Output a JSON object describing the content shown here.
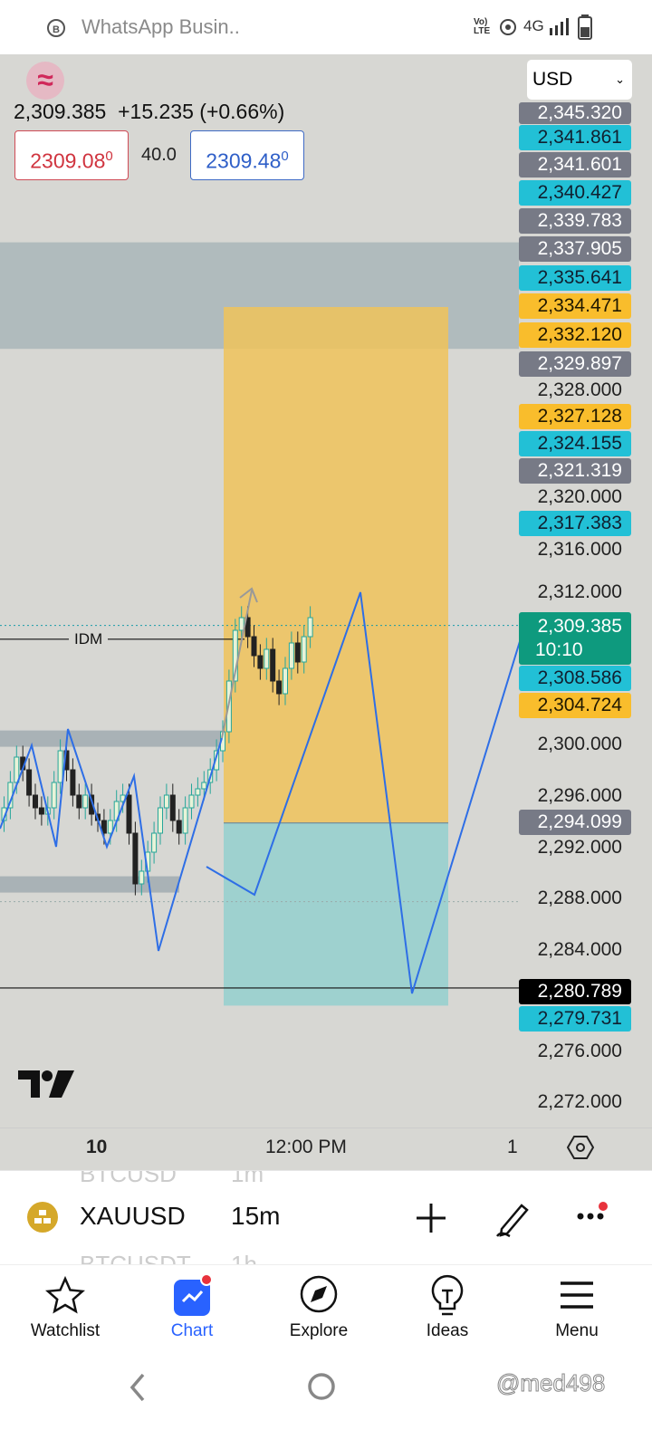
{
  "status_bar": {
    "app": "WhatsApp Busin..",
    "network": "4G",
    "volte": "Vo) LTE"
  },
  "header": {
    "price": "2,309.385",
    "change": "+15.235 (+0.66%)",
    "bid": "2309.08",
    "bid_sup": "0",
    "spread": "40.0",
    "ask": "2309.48",
    "ask_sup": "0",
    "currency": "USD"
  },
  "price_labels": [
    {
      "v": "2,345.320",
      "k": "grey"
    },
    {
      "v": "2,341.861",
      "k": "cyan"
    },
    {
      "v": "2,341.601",
      "k": "grey"
    },
    {
      "v": "2,340.427",
      "k": "cyan"
    },
    {
      "v": "2,339.783",
      "k": "grey"
    },
    {
      "v": "2,337.905",
      "k": "grey"
    },
    {
      "v": "2,335.641",
      "k": "cyan"
    },
    {
      "v": "2,334.471",
      "k": "orange"
    },
    {
      "v": "2,332.120",
      "k": "orange"
    },
    {
      "v": "2,329.897",
      "k": "grey"
    },
    {
      "v": "2,327.128",
      "k": "orange"
    },
    {
      "v": "2,324.155",
      "k": "cyan"
    },
    {
      "v": "2,321.319",
      "k": "grey"
    },
    {
      "v": "2,317.383",
      "k": "cyan"
    },
    {
      "v": "2,309.385",
      "k": "green",
      "sub": "10:10"
    },
    {
      "v": "2,308.586",
      "k": "cyan"
    },
    {
      "v": "2,304.724",
      "k": "orange"
    },
    {
      "v": "2,294.099",
      "k": "grey"
    },
    {
      "v": "2,280.789",
      "k": "black"
    },
    {
      "v": "2,279.731",
      "k": "cyan"
    }
  ],
  "axis_ticks": [
    "2,328.000",
    "2,320.000",
    "2,316.000",
    "2,312.000",
    "2,300.000",
    "2,296.000",
    "2,292.000",
    "2,288.000",
    "2,284.000",
    "2,276.000",
    "2,272.000"
  ],
  "time_axis": {
    "labels": [
      "10",
      "12:00 PM"
    ],
    "right": "1"
  },
  "drawing_labels": {
    "idm": "IDM"
  },
  "chart_data": {
    "type": "candlestick",
    "symbol": "XAUUSD",
    "interval": "15m",
    "ylim": [
      2270,
      2350
    ],
    "closes": [
      2295,
      2297,
      2299,
      2298,
      2296,
      2295,
      2294.5,
      2295,
      2297,
      2299.5,
      2298,
      2296,
      2295,
      2296,
      2294.5,
      2294,
      2293,
      2294,
      2295.5,
      2296,
      2293,
      2289,
      2290,
      2291.5,
      2293,
      2295,
      2296,
      2294,
      2293,
      2295,
      2296,
      2296.5,
      2297,
      2298,
      2299.5,
      2301,
      2305,
      2309,
      2310,
      2308.5,
      2307,
      2306,
      2307.5,
      2305,
      2304,
      2306,
      2308,
      2306.5,
      2308.5,
      2310
    ],
    "colors": {
      "up": "#26a69a",
      "down": "#222222",
      "long_box": "#f0c35a",
      "stop_box": "#9ed1cf",
      "zone": "#a9b6b9",
      "line": "#2e6ee6"
    }
  },
  "symbol_bar": {
    "prev_symbol": "BTCUSD",
    "prev_interval": "1m",
    "symbol": "XAUUSD",
    "interval": "15m",
    "next_symbol": "BTCUSDT",
    "next_interval": "1h"
  },
  "nav": [
    {
      "label": "Watchlist",
      "icon": "star"
    },
    {
      "label": "Chart",
      "icon": "chart",
      "active": true
    },
    {
      "label": "Explore",
      "icon": "compass"
    },
    {
      "label": "Ideas",
      "icon": "lightbulb"
    },
    {
      "label": "Menu",
      "icon": "menu"
    }
  ],
  "watermark": "@med498"
}
